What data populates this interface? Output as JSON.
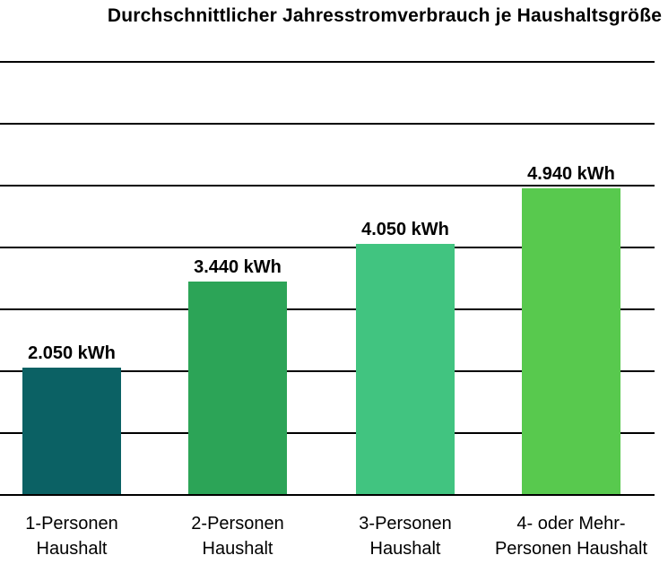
{
  "chart_data": {
    "type": "bar",
    "title": "Durchschnittlicher Jahresstromverbrauch je Haushaltsgröße",
    "categories": [
      "1-Personen\nHaushalt",
      "2-Personen\nHaushalt",
      "3-Personen\nHaushalt",
      "4- oder Mehr-\nPersonen Haushalt"
    ],
    "values": [
      2050,
      3440,
      4050,
      4940
    ],
    "value_labels": [
      "2.050 kWh",
      "3.440 kWh",
      "4.050 kWh",
      "4.940 kWh"
    ],
    "unit": "kWh",
    "bar_colors": [
      "#0B6164",
      "#2CA457",
      "#41C480",
      "#58C94E"
    ],
    "xlabel": "",
    "ylabel": "",
    "ylim": [
      0,
      7000
    ],
    "gridline_step": 1000,
    "grid": true,
    "gridline_color": "#000000",
    "y_tick_labels_visible": false,
    "legend_position": "none",
    "background_color": "#FFFFFF"
  }
}
